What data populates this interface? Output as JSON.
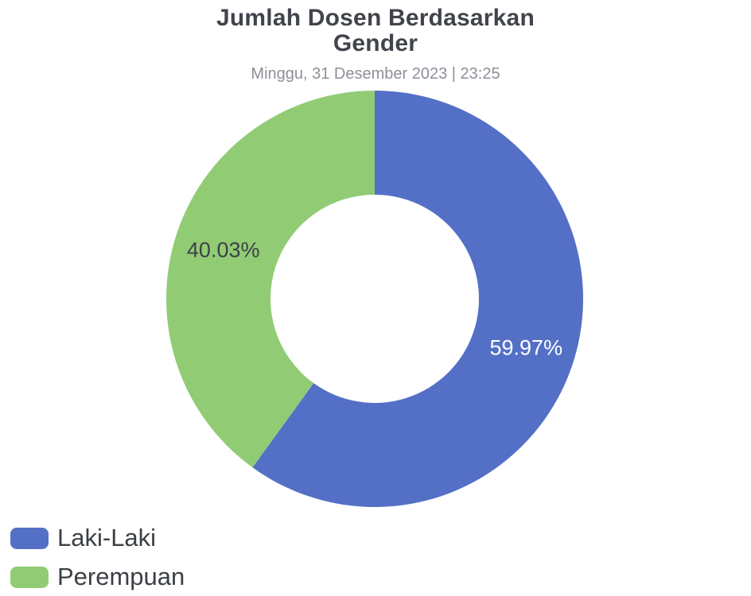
{
  "chart_data": {
    "type": "pie",
    "variant": "donut",
    "title": "Jumlah Dosen Berdasarkan Gender",
    "title_lines": [
      "Jumlah Dosen Berdasarkan",
      "Gender"
    ],
    "subtitle": "Minggu, 31 Desember 2023 | 23:25",
    "start_angle_deg": 0,
    "direction": "clockwise",
    "inner_radius_ratio": 0.5,
    "legend_position": "bottom-left",
    "values_unit": "%",
    "slices": [
      {
        "label": "Laki-Laki",
        "value": 59.97,
        "display": "59.97%",
        "color": "#5470C6",
        "label_color": "#FFFFFF"
      },
      {
        "label": "Perempuan",
        "value": 40.03,
        "display": "40.03%",
        "color": "#91CC75",
        "label_color": "#3D4148"
      }
    ],
    "colors": {
      "title": "#41444B",
      "subtitle": "#8C9099",
      "legend_text": "#3C4045",
      "background": "#FFFFFF"
    }
  }
}
